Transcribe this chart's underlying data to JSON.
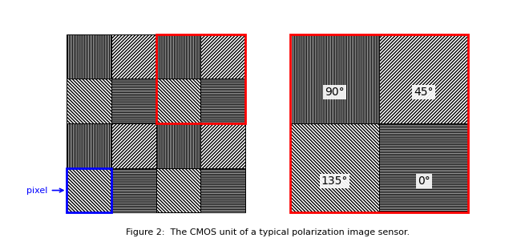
{
  "figure_caption": "Figure 2:  The CMOS unit of a typical polarization image sensor.",
  "left_grid_hatches": [
    [
      "|||",
      "////",
      "|||",
      "////"
    ],
    [
      "\\\\\\\\",
      "---",
      "\\\\\\\\",
      "---"
    ],
    [
      "|||",
      "////",
      "|||",
      "////"
    ],
    [
      "\\\\\\\\",
      "---",
      "\\\\\\\\",
      "---"
    ]
  ],
  "right_grid_hatches": [
    "|||",
    "////",
    "\\\\\\\\",
    "---"
  ],
  "right_grid_labels": [
    "90°",
    "45°",
    "135°",
    "0°"
  ],
  "bg_color": "#ffffff"
}
